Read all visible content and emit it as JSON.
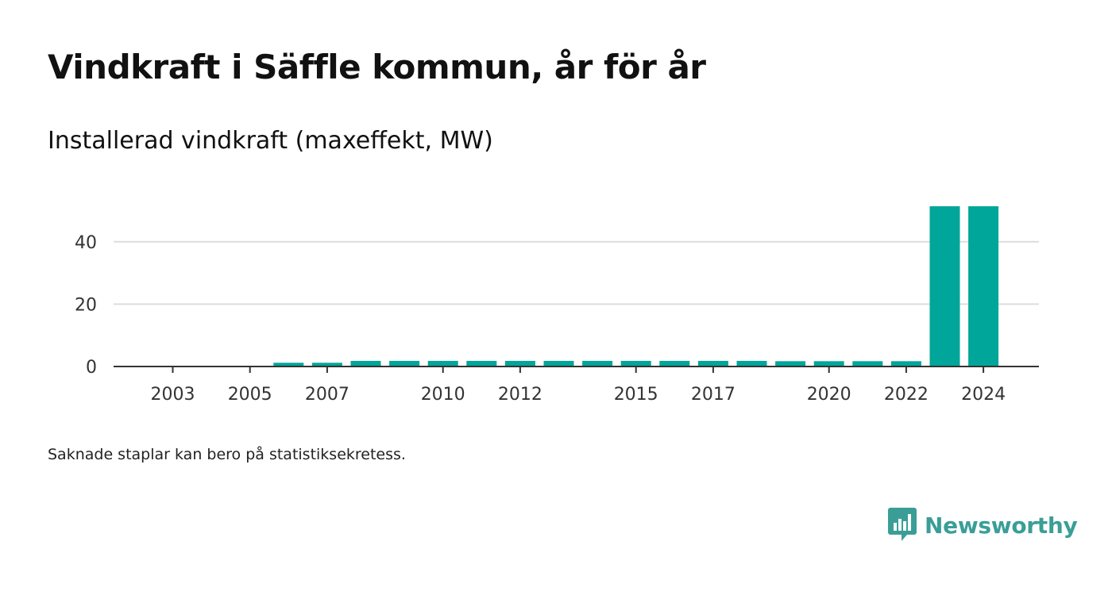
{
  "colors": {
    "bar": "#00a699",
    "grid": "#dddddd",
    "axis": "#333333",
    "brand": "#3a9e97"
  },
  "header": {
    "title": "Vindkraft i Säffle kommun, år för år",
    "subtitle": "Installerad vindkraft (maxeffekt, MW)"
  },
  "footer": {
    "note": "Saknade staplar kan bero på statistiksekretess.",
    "brand_name": "Newsworthy",
    "brand_icon": "newsworthy-logo-icon"
  },
  "chart_data": {
    "type": "bar",
    "title": "Installerad vindkraft (maxeffekt, MW)",
    "xlabel": "",
    "ylabel": "",
    "categories": [
      "2003",
      "2004",
      "2005",
      "2006",
      "2007",
      "2008",
      "2009",
      "2010",
      "2011",
      "2012",
      "2013",
      "2014",
      "2015",
      "2016",
      "2017",
      "2018",
      "2019",
      "2020",
      "2021",
      "2022",
      "2023",
      "2024"
    ],
    "values": [
      0,
      0,
      0,
      1.2,
      1.2,
      1.8,
      1.8,
      1.8,
      1.8,
      1.8,
      1.8,
      1.8,
      1.8,
      1.8,
      1.8,
      1.8,
      1.7,
      1.7,
      1.7,
      1.7,
      51.4,
      51.4
    ],
    "x_tick_labels": [
      "2003",
      "2005",
      "2007",
      "2010",
      "2012",
      "2015",
      "2017",
      "2020",
      "2022",
      "2024"
    ],
    "y_ticks": [
      0,
      20,
      40
    ],
    "ylim": [
      0,
      51.4
    ],
    "grid": true,
    "legend": "none"
  }
}
